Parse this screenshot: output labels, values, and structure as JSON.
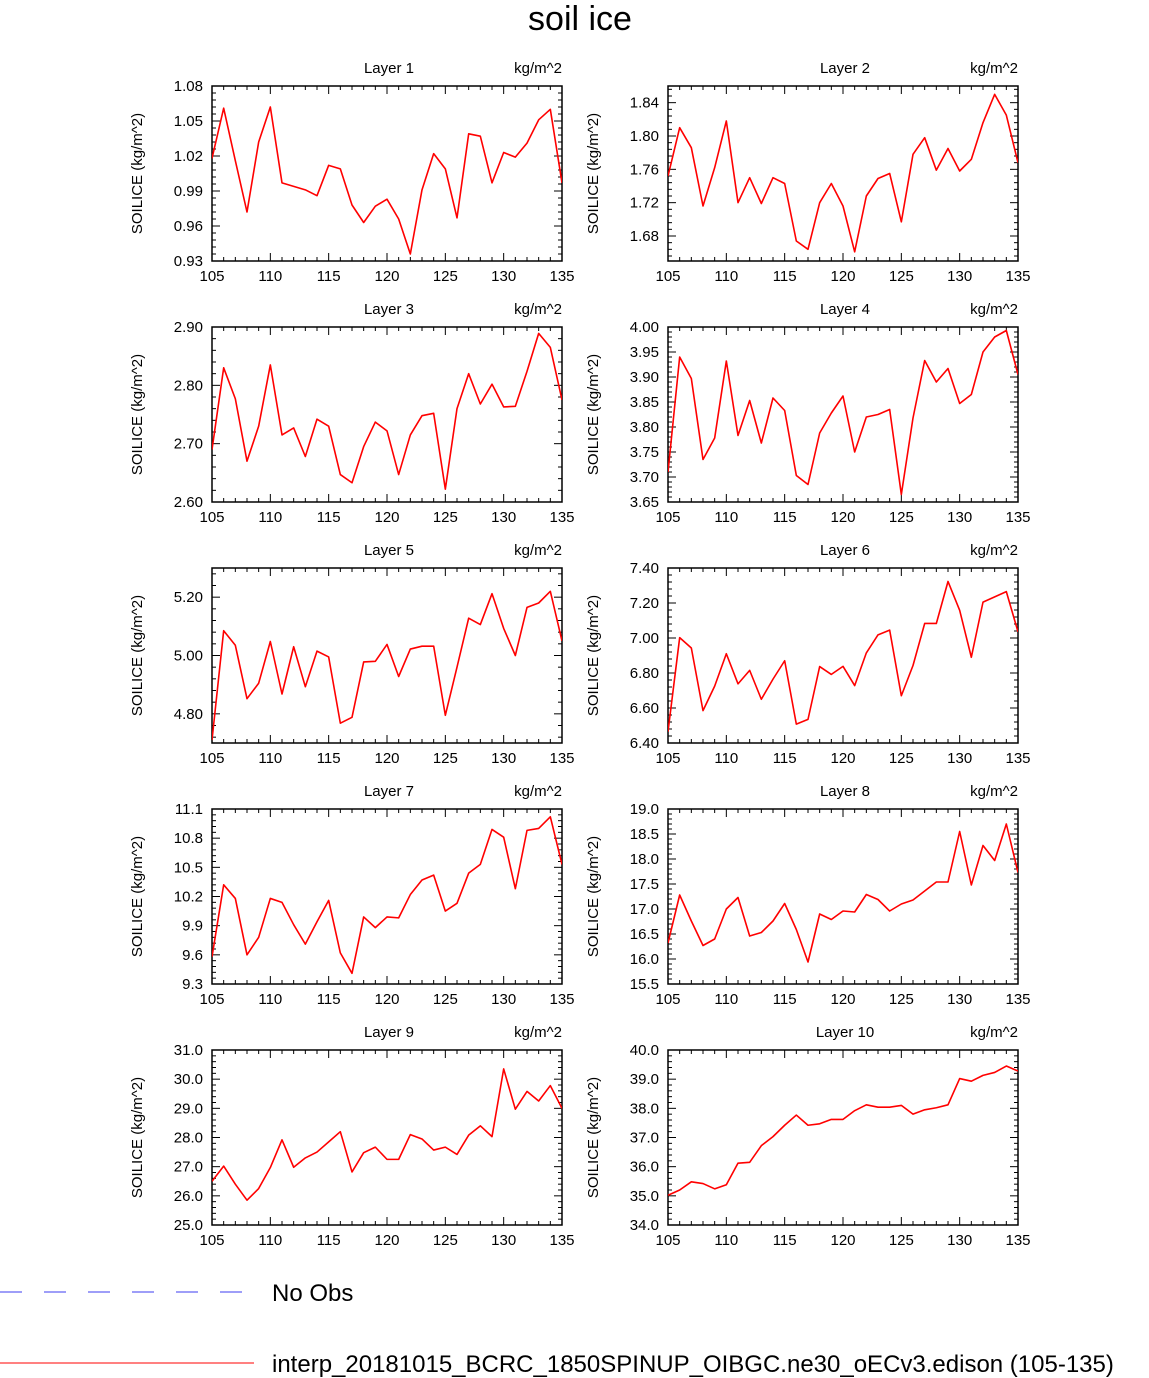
{
  "chart_data": {
    "type": "line",
    "title": "soil ice",
    "ylabel": "SOILICE  (kg/m^2)",
    "units": "kg/m^2",
    "x": [
      105,
      106,
      107,
      108,
      109,
      110,
      111,
      112,
      113,
      114,
      115,
      116,
      117,
      118,
      119,
      120,
      121,
      122,
      123,
      124,
      125,
      126,
      127,
      128,
      129,
      130,
      131,
      132,
      133,
      134,
      135
    ],
    "xlim": [
      105,
      135
    ],
    "xticks": [
      "105",
      "110",
      "115",
      "120",
      "125",
      "130",
      "135"
    ],
    "panels": [
      {
        "title": "Layer 1",
        "units": "kg/m^2",
        "ylim": [
          0.93,
          1.08
        ],
        "yticks": [
          "0.93",
          "0.96",
          "0.99",
          "1.02",
          "1.05",
          "1.08"
        ],
        "values": [
          1.018,
          1.061,
          1.016,
          0.972,
          1.032,
          1.062,
          0.997,
          0.994,
          0.991,
          0.986,
          1.012,
          1.009,
          0.978,
          0.963,
          0.977,
          0.983,
          0.966,
          0.936,
          0.991,
          1.022,
          1.009,
          0.967,
          1.039,
          1.037,
          0.997,
          1.023,
          1.019,
          1.031,
          1.051,
          1.06,
          0.997
        ]
      },
      {
        "title": "Layer 2",
        "units": "kg/m^2",
        "ylim": [
          1.65,
          1.86
        ],
        "yticks": [
          "1.68",
          "1.72",
          "1.76",
          "1.80",
          "1.84"
        ],
        "values": [
          1.752,
          1.81,
          1.786,
          1.716,
          1.762,
          1.818,
          1.72,
          1.75,
          1.719,
          1.75,
          1.743,
          1.674,
          1.664,
          1.72,
          1.743,
          1.716,
          1.661,
          1.728,
          1.749,
          1.755,
          1.697,
          1.778,
          1.798,
          1.759,
          1.785,
          1.758,
          1.772,
          1.816,
          1.85,
          1.825,
          1.768
        ]
      },
      {
        "title": "Layer 3",
        "units": "kg/m^2",
        "ylim": [
          2.6,
          2.9
        ],
        "yticks": [
          "2.60",
          "2.70",
          "2.80",
          "2.90"
        ],
        "values": [
          2.69,
          2.83,
          2.777,
          2.67,
          2.73,
          2.835,
          2.715,
          2.727,
          2.678,
          2.742,
          2.73,
          2.647,
          2.633,
          2.695,
          2.737,
          2.722,
          2.647,
          2.715,
          2.748,
          2.752,
          2.622,
          2.76,
          2.82,
          2.768,
          2.802,
          2.763,
          2.764,
          2.824,
          2.889,
          2.865,
          2.775
        ]
      },
      {
        "title": "Layer 4",
        "units": "kg/m^2",
        "ylim": [
          3.65,
          4.0
        ],
        "yticks": [
          "3.65",
          "3.70",
          "3.75",
          "3.80",
          "3.85",
          "3.90",
          "3.95",
          "4.00"
        ],
        "values": [
          3.71,
          3.94,
          3.897,
          3.735,
          3.778,
          3.932,
          3.783,
          3.853,
          3.768,
          3.858,
          3.833,
          3.703,
          3.685,
          3.788,
          3.828,
          3.862,
          3.75,
          3.82,
          3.825,
          3.835,
          3.665,
          3.818,
          3.933,
          3.89,
          3.917,
          3.847,
          3.865,
          3.95,
          3.98,
          3.993,
          3.905
        ]
      },
      {
        "title": "Layer 5",
        "units": "kg/m^2",
        "ylim": [
          4.7,
          5.3
        ],
        "yticks": [
          "4.80",
          "5.00",
          "5.20"
        ],
        "values": [
          4.71,
          5.085,
          5.035,
          4.852,
          4.905,
          5.048,
          4.868,
          5.03,
          4.893,
          5.015,
          4.995,
          4.768,
          4.788,
          4.978,
          4.98,
          5.038,
          4.928,
          5.022,
          5.032,
          5.032,
          4.795,
          4.96,
          5.128,
          5.106,
          5.212,
          5.093,
          5.0,
          5.165,
          5.18,
          5.22,
          5.05
        ]
      },
      {
        "title": "Layer 6",
        "units": "kg/m^2",
        "ylim": [
          6.4,
          7.4
        ],
        "yticks": [
          "6.40",
          "6.60",
          "6.80",
          "7.00",
          "7.20",
          "7.40"
        ],
        "values": [
          6.465,
          7.002,
          6.943,
          6.585,
          6.725,
          6.91,
          6.738,
          6.815,
          6.65,
          6.765,
          6.87,
          6.508,
          6.535,
          6.837,
          6.792,
          6.838,
          6.728,
          6.915,
          7.018,
          7.045,
          6.67,
          6.843,
          7.083,
          7.083,
          7.323,
          7.158,
          6.89,
          7.205,
          7.235,
          7.265,
          7.035
        ]
      },
      {
        "title": "Layer 7",
        "units": "kg/m^2",
        "ylim": [
          9.3,
          11.1
        ],
        "yticks": [
          "9.3",
          "9.6",
          "9.9",
          "10.2",
          "10.5",
          "10.8",
          "11.1"
        ],
        "values": [
          9.58,
          10.32,
          10.18,
          9.6,
          9.78,
          10.18,
          10.14,
          9.91,
          9.71,
          9.94,
          10.16,
          9.62,
          9.41,
          9.99,
          9.88,
          9.99,
          9.98,
          10.22,
          10.37,
          10.42,
          10.05,
          10.13,
          10.44,
          10.53,
          10.89,
          10.81,
          10.28,
          10.88,
          10.9,
          11.02,
          10.53
        ]
      },
      {
        "title": "Layer 8",
        "units": "kg/m^2",
        "ylim": [
          15.5,
          19.0
        ],
        "yticks": [
          "15.5",
          "16.0",
          "16.5",
          "17.0",
          "17.5",
          "18.0",
          "18.5",
          "19.0"
        ],
        "values": [
          16.32,
          17.28,
          16.76,
          16.27,
          16.4,
          17.0,
          17.23,
          16.46,
          16.53,
          16.76,
          17.11,
          16.59,
          15.94,
          16.9,
          16.79,
          16.96,
          16.94,
          17.29,
          17.19,
          16.96,
          17.1,
          17.18,
          17.36,
          17.54,
          17.54,
          18.55,
          17.48,
          18.27,
          17.97,
          18.7,
          17.73
        ]
      },
      {
        "title": "Layer 9",
        "units": "kg/m^2",
        "ylim": [
          25.0,
          31.0
        ],
        "yticks": [
          "25.0",
          "26.0",
          "27.0",
          "28.0",
          "29.0",
          "30.0",
          "31.0"
        ],
        "values": [
          26.5,
          27.02,
          26.4,
          25.85,
          26.25,
          26.97,
          27.92,
          26.98,
          27.3,
          27.5,
          27.85,
          28.2,
          26.82,
          27.48,
          27.67,
          27.25,
          27.25,
          28.1,
          27.95,
          27.57,
          27.67,
          27.42,
          28.08,
          28.4,
          28.03,
          30.35,
          28.97,
          29.58,
          29.25,
          29.78,
          29.0
        ]
      },
      {
        "title": "Layer 10",
        "units": "kg/m^2",
        "ylim": [
          34.0,
          40.0
        ],
        "yticks": [
          "34.0",
          "35.0",
          "36.0",
          "37.0",
          "38.0",
          "39.0",
          "40.0"
        ],
        "values": [
          35.02,
          35.2,
          35.48,
          35.42,
          35.24,
          35.38,
          36.12,
          36.15,
          36.72,
          37.03,
          37.42,
          37.77,
          37.42,
          37.47,
          37.62,
          37.62,
          37.92,
          38.12,
          38.04,
          38.04,
          38.1,
          37.8,
          37.95,
          38.02,
          38.12,
          39.02,
          38.93,
          39.13,
          39.23,
          39.45,
          39.28
        ]
      }
    ],
    "legend": [
      {
        "label": "No Obs",
        "color": "#3c3cf0",
        "style": "dashed"
      },
      {
        "label": "interp_20181015_BCRC_1850SPINUP_OIBGC.ne30_oECv3.edison (105-135)",
        "color": "#ff0000",
        "style": "solid"
      }
    ],
    "series_color": "#ff0000"
  }
}
